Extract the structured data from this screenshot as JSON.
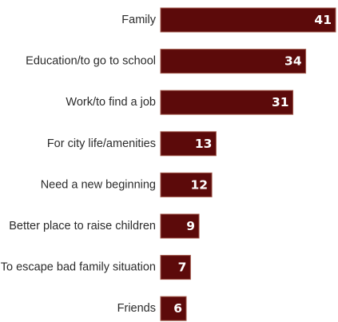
{
  "chart_data": {
    "type": "bar",
    "orientation": "horizontal",
    "categories": [
      "Family",
      "Education/to go to school",
      "Work/to find a job",
      "For city life/amenities",
      "Need a new beginning",
      "Better place to raise children",
      "To escape bad family situation",
      "Friends"
    ],
    "values": [
      41,
      34,
      31,
      13,
      12,
      9,
      7,
      6
    ],
    "value_labels": [
      "41",
      "34",
      "31",
      "13",
      "12",
      "9",
      "7",
      "6"
    ],
    "xlim": [
      0,
      41
    ],
    "grid": false,
    "legend": "none",
    "bar_color": "#5c0a0a",
    "label_color": "#ffffff"
  }
}
